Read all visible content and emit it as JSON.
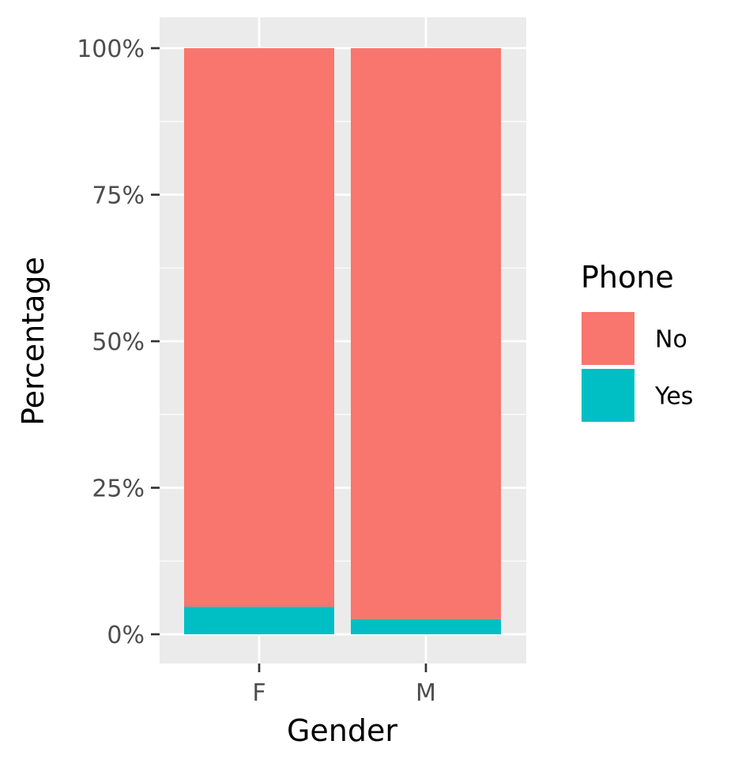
{
  "chart_data": {
    "type": "bar",
    "stacked": true,
    "position": "fill",
    "categories": [
      "F",
      "M"
    ],
    "series": [
      {
        "name": "No",
        "values": [
          95.3,
          97.4
        ],
        "color": "#F8766D"
      },
      {
        "name": "Yes",
        "values": [
          4.7,
          2.6
        ],
        "color": "#00BFC4"
      }
    ],
    "xlabel": "Gender",
    "ylabel": "Percentage",
    "ylim": [
      0,
      100
    ],
    "yticks": [
      {
        "value": 0,
        "label": "0%"
      },
      {
        "value": 25,
        "label": "25%"
      },
      {
        "value": 50,
        "label": "50%"
      },
      {
        "value": 75,
        "label": "75%"
      },
      {
        "value": 100,
        "label": "100%"
      }
    ],
    "legend": {
      "title": "Phone",
      "placement": "right",
      "entries": [
        "No",
        "Yes"
      ]
    },
    "grid": true,
    "panel_background": "#EBEBEB",
    "grid_color": "#FFFFFF"
  }
}
